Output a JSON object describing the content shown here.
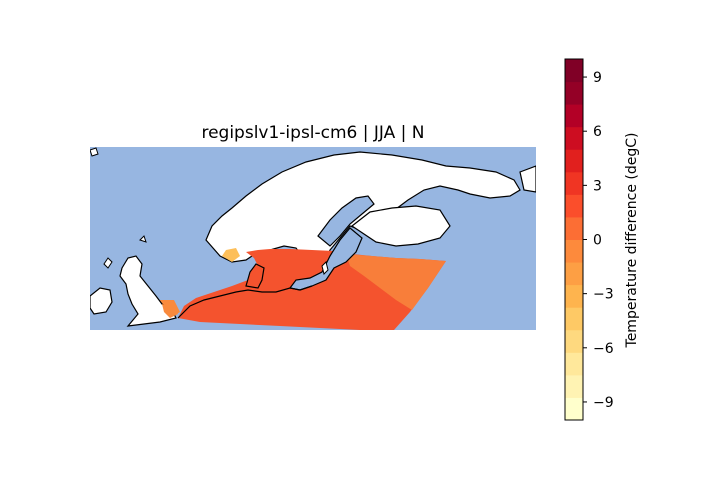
{
  "title": "regipslv1-ipsl-cm6 | JJA | N",
  "colorbar": {
    "label": "Temperature difference (degC)",
    "min": -10,
    "max": 10,
    "ticks": [
      {
        "value": 9,
        "label": "9"
      },
      {
        "value": 6,
        "label": "6"
      },
      {
        "value": 3,
        "label": "3"
      },
      {
        "value": 0,
        "label": "0"
      },
      {
        "value": -3,
        "label": "−3"
      },
      {
        "value": -6,
        "label": "−6"
      },
      {
        "value": -9,
        "label": "−9"
      }
    ],
    "colormap": "YlOrRd",
    "levels": [
      "#ffffcc",
      "#fff3b3",
      "#ffe89b",
      "#fed97f",
      "#fec965",
      "#feb44e",
      "#fd9f44",
      "#fd8a3c",
      "#fc6e34",
      "#fb4e2b",
      "#f03523",
      "#e1201e",
      "#cd0d21",
      "#b30026",
      "#940026",
      "#800026"
    ]
  },
  "map": {
    "region": "Northern Europe / Scandinavia",
    "ocean_color": "#97b6e1",
    "land_color": "#ffffff",
    "data_field_color": "#f4532e"
  }
}
